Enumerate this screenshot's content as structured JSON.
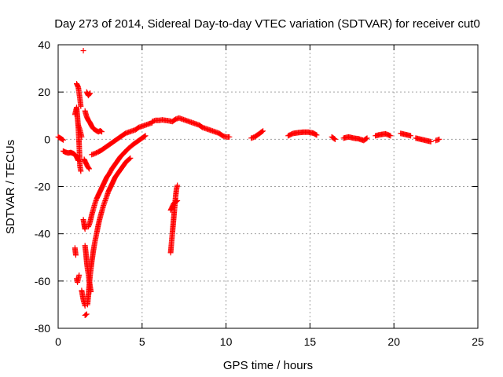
{
  "chart_data": {
    "type": "scatter",
    "title": "Day 273 of 2014, Sidereal Day-to-day VTEC variation (SDTVAR) for receiver cut0",
    "xlabel": "GPS time / hours",
    "ylabel": "SDTVAR / TECUs",
    "xlim": [
      0,
      25
    ],
    "ylim": [
      -80,
      40
    ],
    "xticks": [
      0,
      5,
      10,
      15,
      20,
      25
    ],
    "yticks": [
      -80,
      -60,
      -40,
      -20,
      0,
      20,
      40
    ],
    "grid": true,
    "marker": "+",
    "marker_color": "#ff0000",
    "series": [
      {
        "name": "SDTVAR",
        "segments": [
          [
            [
              0.0,
              1.0
            ],
            [
              0.1,
              0.6
            ],
            [
              0.2,
              0.2
            ],
            [
              0.3,
              -0.3
            ]
          ],
          [
            [
              0.3,
              -5.0
            ],
            [
              0.45,
              -5.5
            ],
            [
              0.6,
              -5.8
            ],
            [
              0.75,
              -5.6
            ],
            [
              0.9,
              -6.0
            ],
            [
              1.0,
              -6.5
            ],
            [
              1.1,
              -7.5
            ],
            [
              1.2,
              -9.0
            ]
          ],
          [
            [
              1.0,
              10.5
            ],
            [
              1.1,
              13.5
            ],
            [
              1.15,
              9.5
            ],
            [
              1.2,
              5.0
            ],
            [
              1.25,
              -2.0
            ],
            [
              1.3,
              -11.5
            ],
            [
              1.35,
              -13.5
            ]
          ],
          [
            [
              1.1,
              23.5
            ],
            [
              1.2,
              22.0
            ],
            [
              1.25,
              19.5
            ],
            [
              1.3,
              17.0
            ],
            [
              1.35,
              14.0
            ]
          ],
          [
            [
              1.2,
              6.0
            ],
            [
              1.3,
              4.0
            ],
            [
              1.35,
              2.5
            ],
            [
              1.4,
              1.0
            ]
          ],
          [
            [
              1.5,
              37.5
            ]
          ],
          [
            [
              1.7,
              20.0
            ],
            [
              1.8,
              18.5
            ],
            [
              1.9,
              19.5
            ]
          ],
          [
            [
              1.6,
              12.0
            ],
            [
              1.7,
              9.5
            ],
            [
              1.8,
              8.0
            ],
            [
              1.9,
              7.0
            ],
            [
              2.0,
              5.5
            ],
            [
              2.1,
              4.5
            ],
            [
              2.2,
              4.0
            ],
            [
              2.3,
              3.5
            ],
            [
              2.4,
              3.2
            ],
            [
              2.5,
              3.6
            ],
            [
              2.6,
              3.2
            ]
          ],
          [
            [
              1.55,
              -8.5
            ],
            [
              1.65,
              -10.0
            ],
            [
              1.75,
              -11.5
            ],
            [
              1.85,
              -12.5
            ]
          ],
          [
            [
              2.0,
              -6.5
            ],
            [
              2.2,
              -6.0
            ],
            [
              2.4,
              -5.3
            ],
            [
              2.6,
              -4.5
            ],
            [
              2.8,
              -3.5
            ],
            [
              3.0,
              -2.5
            ],
            [
              3.2,
              -1.5
            ],
            [
              3.4,
              -0.5
            ],
            [
              3.6,
              0.5
            ],
            [
              3.8,
              1.5
            ],
            [
              4.0,
              2.5
            ],
            [
              4.2,
              3.0
            ],
            [
              4.4,
              3.5
            ],
            [
              4.6,
              4.0
            ],
            [
              4.8,
              5.0
            ],
            [
              5.0,
              5.5
            ],
            [
              5.2,
              6.0
            ],
            [
              5.4,
              6.5
            ],
            [
              5.6,
              7.0
            ]
          ],
          [
            [
              1.8,
              -37.0
            ],
            [
              1.9,
              -35.0
            ],
            [
              2.0,
              -32.0
            ],
            [
              2.1,
              -29.5
            ],
            [
              2.2,
              -27.0
            ],
            [
              2.3,
              -25.0
            ],
            [
              2.4,
              -23.5
            ],
            [
              2.5,
              -22.0
            ],
            [
              2.6,
              -20.5
            ],
            [
              2.7,
              -19.0
            ],
            [
              2.8,
              -17.5
            ],
            [
              2.9,
              -16.0
            ],
            [
              3.0,
              -15.0
            ],
            [
              3.1,
              -13.8
            ],
            [
              3.2,
              -12.5
            ],
            [
              3.3,
              -11.5
            ],
            [
              3.4,
              -10.5
            ],
            [
              3.5,
              -9.5
            ],
            [
              3.6,
              -8.5
            ],
            [
              3.7,
              -7.5
            ],
            [
              3.8,
              -6.7
            ],
            [
              3.9,
              -6.0
            ],
            [
              4.0,
              -5.2
            ],
            [
              4.1,
              -4.5
            ],
            [
              4.2,
              -3.8
            ],
            [
              4.3,
              -3.2
            ],
            [
              4.4,
              -2.6
            ],
            [
              4.5,
              -2.0
            ],
            [
              4.6,
              -1.5
            ],
            [
              4.7,
              -1.0
            ],
            [
              4.8,
              -0.5
            ],
            [
              4.9,
              0.0
            ],
            [
              5.0,
              0.5
            ],
            [
              5.1,
              1.0
            ],
            [
              5.2,
              1.5
            ]
          ],
          [
            [
              1.75,
              -70.0
            ],
            [
              1.8,
              -66.0
            ],
            [
              1.85,
              -62.0
            ],
            [
              1.9,
              -58.0
            ],
            [
              1.95,
              -55.0
            ],
            [
              2.0,
              -52.0
            ],
            [
              2.1,
              -47.0
            ],
            [
              2.2,
              -43.0
            ],
            [
              2.3,
              -39.5
            ],
            [
              2.4,
              -36.0
            ],
            [
              2.5,
              -33.0
            ],
            [
              2.6,
              -30.5
            ],
            [
              2.7,
              -28.0
            ],
            [
              2.8,
              -26.0
            ],
            [
              2.9,
              -24.0
            ],
            [
              3.0,
              -22.0
            ],
            [
              3.1,
              -20.5
            ],
            [
              3.2,
              -19.0
            ],
            [
              3.3,
              -17.5
            ],
            [
              3.4,
              -16.0
            ],
            [
              3.5,
              -15.0
            ],
            [
              3.6,
              -14.0
            ],
            [
              3.7,
              -13.0
            ],
            [
              3.8,
              -12.0
            ],
            [
              3.9,
              -11.0
            ],
            [
              4.0,
              -10.0
            ],
            [
              4.1,
              -9.2
            ],
            [
              4.2,
              -8.6
            ],
            [
              4.3,
              -8.0
            ]
          ],
          [
            [
              1.6,
              -45.0
            ],
            [
              1.65,
              -48.0
            ],
            [
              1.7,
              -52.0
            ],
            [
              1.75,
              -55.0
            ],
            [
              1.8,
              -57.0
            ],
            [
              1.85,
              -60.0
            ],
            [
              1.9,
              -62.0
            ],
            [
              1.95,
              -64.5
            ]
          ],
          [
            [
              1.5,
              -34.0
            ],
            [
              1.6,
              -38.0
            ],
            [
              1.55,
              -36.0
            ]
          ],
          [
            [
              1.0,
              -46.0
            ],
            [
              1.05,
              -49.0
            ]
          ],
          [
            [
              1.1,
              -59.0
            ],
            [
              1.15,
              -60.5
            ],
            [
              1.25,
              -57.5
            ]
          ],
          [
            [
              1.4,
              -64.0
            ],
            [
              1.5,
              -68.0
            ],
            [
              1.6,
              -70.5
            ]
          ],
          [
            [
              1.6,
              -74.5
            ],
            [
              1.7,
              -74.0
            ]
          ],
          [
            [
              5.6,
              7.5
            ],
            [
              5.8,
              8.0
            ],
            [
              6.0,
              8.0
            ],
            [
              6.2,
              8.2
            ],
            [
              6.4,
              8.0
            ],
            [
              6.6,
              7.8
            ],
            [
              6.8,
              7.5
            ],
            [
              7.0,
              8.5
            ],
            [
              7.2,
              9.0
            ],
            [
              7.4,
              8.5
            ],
            [
              7.6,
              8.0
            ],
            [
              7.8,
              7.5
            ],
            [
              8.0,
              7.0
            ],
            [
              8.2,
              6.5
            ],
            [
              8.4,
              6.0
            ],
            [
              8.6,
              5.0
            ],
            [
              8.8,
              4.5
            ],
            [
              9.0,
              4.0
            ],
            [
              9.2,
              3.5
            ],
            [
              9.4,
              3.0
            ],
            [
              9.6,
              2.5
            ],
            [
              9.8,
              1.5
            ],
            [
              10.0,
              1.0
            ],
            [
              10.2,
              1.0
            ]
          ],
          [
            [
              6.7,
              -48.0
            ],
            [
              6.75,
              -44.0
            ],
            [
              6.8,
              -40.0
            ],
            [
              6.85,
              -36.0
            ],
            [
              6.9,
              -32.0
            ],
            [
              6.95,
              -28.0
            ],
            [
              7.0,
              -24.0
            ],
            [
              7.05,
              -21.0
            ],
            [
              7.1,
              -19.5
            ]
          ],
          [
            [
              6.7,
              -30.0
            ],
            [
              6.8,
              -28.5
            ],
            [
              6.9,
              -27.0
            ],
            [
              7.0,
              -26.5
            ],
            [
              7.1,
              -26.0
            ]
          ],
          [
            [
              11.5,
              0.5
            ],
            [
              11.7,
              1.0
            ],
            [
              11.9,
              2.0
            ],
            [
              12.1,
              3.0
            ],
            [
              12.2,
              3.5
            ]
          ],
          [
            [
              13.7,
              1.5
            ],
            [
              14.0,
              2.5
            ],
            [
              14.3,
              2.8
            ],
            [
              14.6,
              3.0
            ],
            [
              14.9,
              3.0
            ],
            [
              15.2,
              2.6
            ],
            [
              15.4,
              1.8
            ]
          ],
          [
            [
              16.3,
              1.0
            ],
            [
              16.5,
              0.0
            ]
          ],
          [
            [
              17.0,
              0.5
            ],
            [
              17.3,
              1.0
            ],
            [
              17.6,
              0.5
            ],
            [
              17.9,
              0.2
            ],
            [
              18.2,
              -0.5
            ],
            [
              18.4,
              0.5
            ]
          ],
          [
            [
              18.9,
              1.5
            ],
            [
              19.2,
              2.0
            ],
            [
              19.5,
              2.3
            ],
            [
              19.8,
              1.5
            ]
          ],
          [
            [
              20.4,
              2.5
            ],
            [
              20.7,
              2.0
            ],
            [
              21.0,
              1.5
            ]
          ],
          [
            [
              21.3,
              0.5
            ],
            [
              21.6,
              0.0
            ],
            [
              21.9,
              -0.5
            ],
            [
              22.2,
              -1.0
            ]
          ],
          [
            [
              22.5,
              -0.5
            ],
            [
              22.7,
              0.0
            ]
          ]
        ]
      }
    ]
  }
}
